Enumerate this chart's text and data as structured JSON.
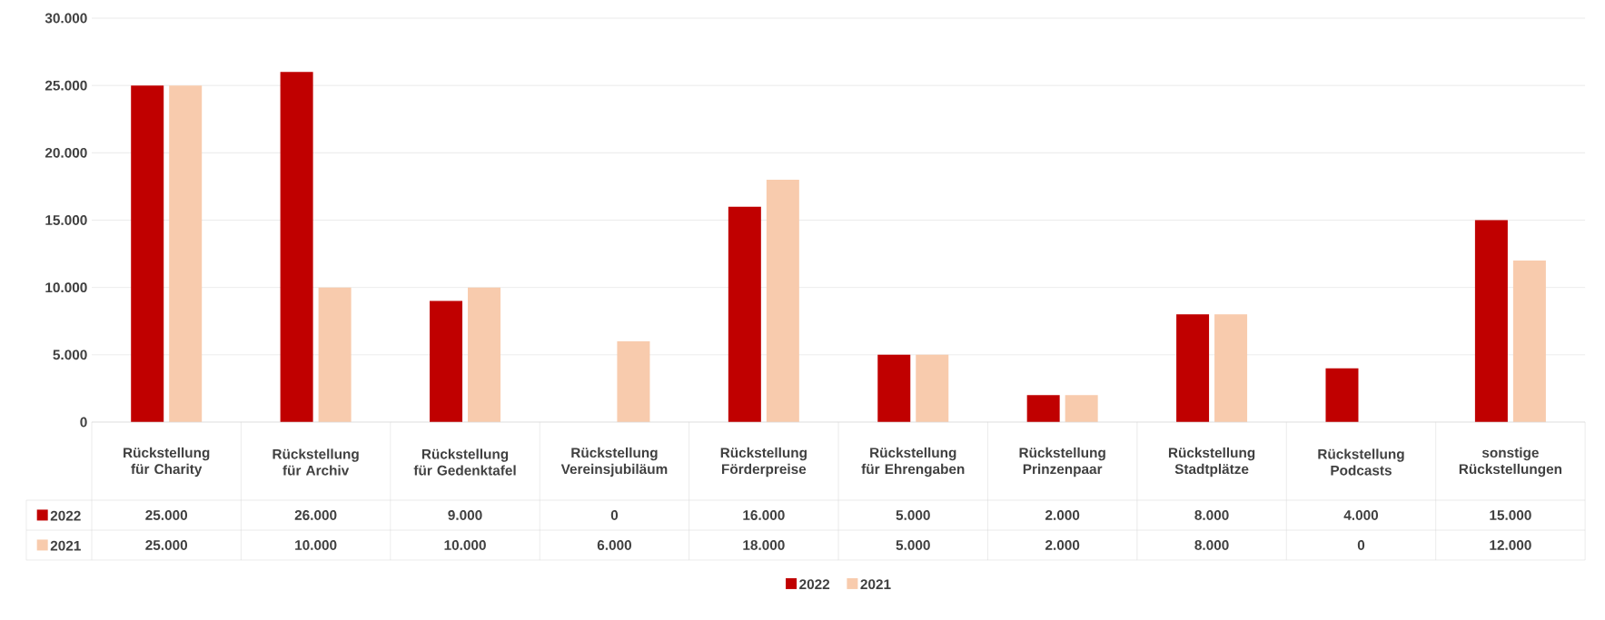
{
  "chart_data": {
    "type": "bar",
    "categories": [
      "Rückstellung für Charity",
      "Rückstellung für Archiv",
      "Rückstellung für Gedenktafel",
      "Rückstellung Vereinsjubiläum",
      "Rückstellung Förderpreise",
      "Rückstellung für Ehrengaben",
      "Rückstellung Prinzenpaar",
      "Rückstellung Stadtplätze",
      "Rückstellung Podcasts",
      "sonstige Rückstellungen"
    ],
    "series": [
      {
        "name": "2022",
        "color": "#c00000",
        "values": [
          25000,
          26000,
          9000,
          0,
          16000,
          5000,
          2000,
          8000,
          4000,
          15000
        ],
        "value_labels": [
          "25.000",
          "26.000",
          "9.000",
          "0",
          "16.000",
          "5.000",
          "2.000",
          "8.000",
          "4.000",
          "15.000"
        ]
      },
      {
        "name": "2021",
        "color": "#f8cbad",
        "values": [
          25000,
          10000,
          10000,
          6000,
          18000,
          5000,
          2000,
          8000,
          0,
          12000
        ],
        "value_labels": [
          "25.000",
          "10.000",
          "10.000",
          "6.000",
          "18.000",
          "5.000",
          "2.000",
          "8.000",
          "0",
          "12.000"
        ]
      }
    ],
    "ylim": [
      0,
      30000
    ],
    "yticks": [
      {
        "value": 0,
        "label": "0"
      },
      {
        "value": 5000,
        "label": "5.000"
      },
      {
        "value": 10000,
        "label": "10.000"
      },
      {
        "value": 15000,
        "label": "15.000"
      },
      {
        "value": 20000,
        "label": "20.000"
      },
      {
        "value": 25000,
        "label": "25.000"
      },
      {
        "value": 30000,
        "label": "30.000"
      }
    ],
    "grid": "y",
    "legend": "bottom"
  }
}
